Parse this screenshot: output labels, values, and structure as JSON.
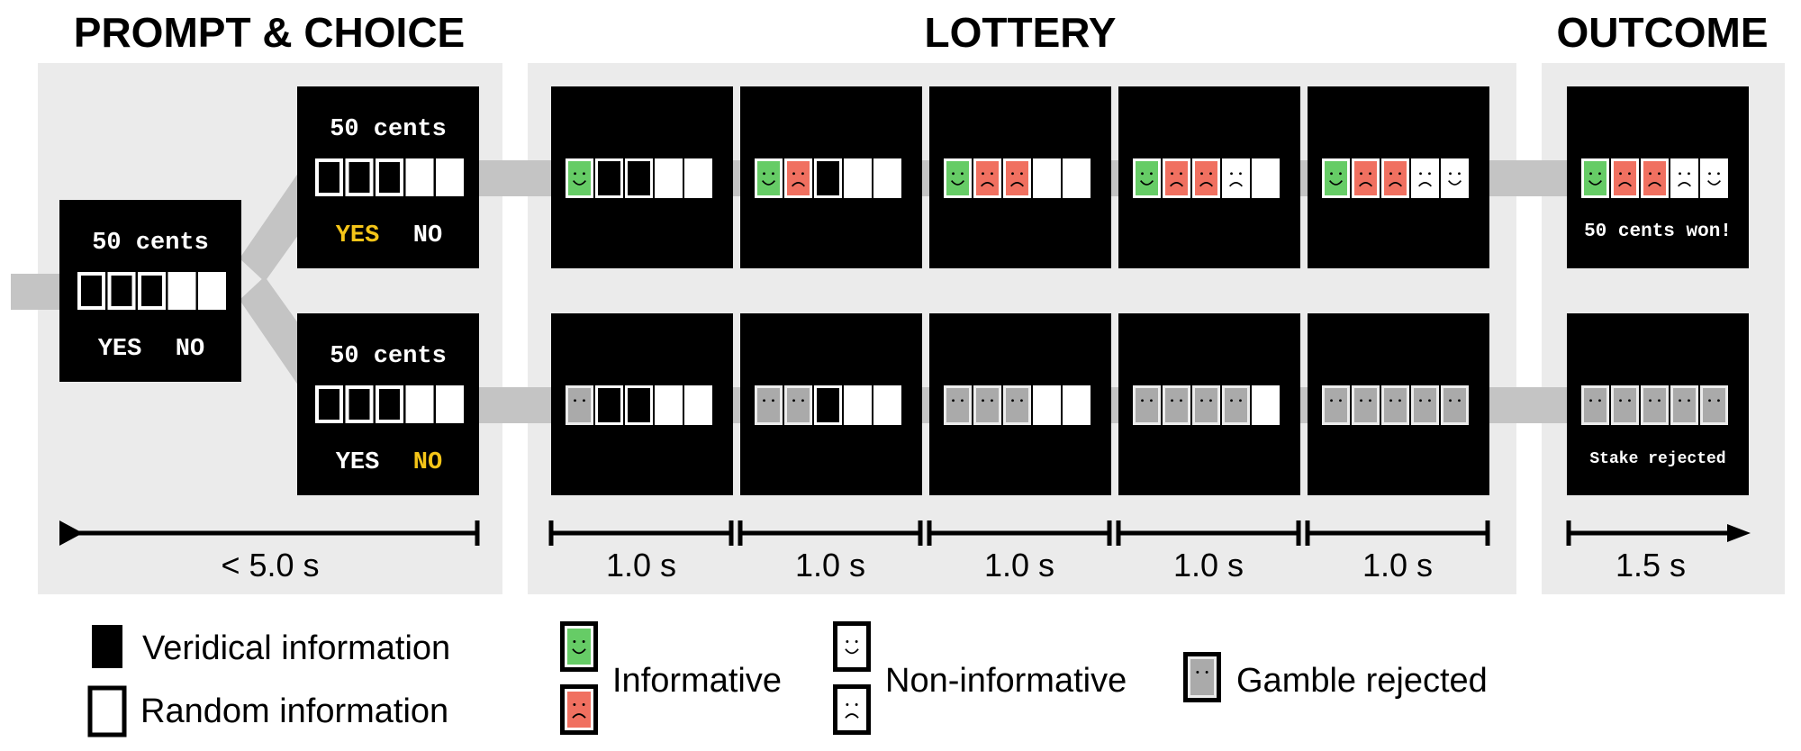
{
  "sections": {
    "prompt": "PROMPT & CHOICE",
    "lottery": "LOTTERY",
    "outcome": "OUTCOME"
  },
  "screens": {
    "stake": "50 cents",
    "yes": "YES",
    "no": "NO",
    "won": "50 cents won!",
    "rejected": "Stake rejected"
  },
  "timeline": {
    "prompt": "< 5.0 s",
    "lottery": [
      "1.0 s",
      "1.0 s",
      "1.0 s",
      "1.0 s",
      "1.0 s"
    ],
    "outcome": "1.5 s"
  },
  "legend": {
    "veridical": "Veridical information",
    "random": "Random information",
    "informative": "Informative",
    "non_informative": "Non-informative",
    "rejected": "Gamble rejected"
  },
  "colors": {
    "panel": "#ebebeb",
    "pipe": "#c4c4c4",
    "screen": "#000000",
    "highlight": "#f5c518",
    "happy": "#66cc66",
    "sad": "#f07060",
    "neutral": "#ffffff",
    "rejected": "#aaaaaa"
  },
  "sequences": {
    "accepted": [
      [
        "happy",
        "veridical",
        "veridical",
        "random",
        "random"
      ],
      [
        "happy",
        "sad",
        "veridical",
        "random",
        "random"
      ],
      [
        "happy",
        "sad",
        "sad",
        "random",
        "random"
      ],
      [
        "happy",
        "sad",
        "sad",
        "frown",
        "random"
      ],
      [
        "happy",
        "sad",
        "sad",
        "frown",
        "smile"
      ]
    ],
    "accepted_outcome": [
      "happy",
      "sad",
      "sad",
      "frown",
      "smile"
    ],
    "rejected": [
      [
        "rejected",
        "veridical",
        "veridical",
        "random",
        "random"
      ],
      [
        "rejected",
        "rejected",
        "veridical",
        "random",
        "random"
      ],
      [
        "rejected",
        "rejected",
        "rejected",
        "random",
        "random"
      ],
      [
        "rejected",
        "rejected",
        "rejected",
        "rejected",
        "random"
      ],
      [
        "rejected",
        "rejected",
        "rejected",
        "rejected",
        "rejected"
      ]
    ],
    "rejected_outcome": [
      "rejected",
      "rejected",
      "rejected",
      "rejected",
      "rejected"
    ]
  }
}
